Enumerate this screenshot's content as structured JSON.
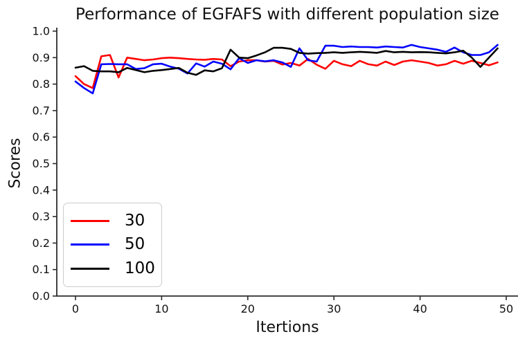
{
  "chart_data": {
    "type": "line",
    "title": "Performance of EGFAFS with different population size",
    "xlabel": "Itertions",
    "ylabel": "Scores",
    "xlim": [
      0,
      50
    ],
    "ylim": [
      0.0,
      1.0
    ],
    "grid": false,
    "legend_position": "lower left",
    "xticks": [
      0,
      10,
      20,
      30,
      40,
      50
    ],
    "xtick_labels": [
      "0",
      "10",
      "20",
      "30",
      "40",
      "50"
    ],
    "yticks": [
      0.0,
      0.1,
      0.2,
      0.3,
      0.4,
      0.5,
      0.6,
      0.7,
      0.8,
      0.9,
      1.0
    ],
    "ytick_labels": [
      "0.0",
      "0.1",
      "0.2",
      "0.3",
      "0.4",
      "0.5",
      "0.6",
      "0.7",
      "0.8",
      "0.9",
      "1.0"
    ],
    "x_start": 0,
    "x_step": 1,
    "series": [
      {
        "name": "30",
        "color": "#ff0000",
        "values": [
          0.83,
          0.8,
          0.785,
          0.905,
          0.91,
          0.825,
          0.9,
          0.895,
          0.89,
          0.893,
          0.898,
          0.9,
          0.898,
          0.895,
          0.893,
          0.892,
          0.895,
          0.893,
          0.868,
          0.885,
          0.89,
          0.89,
          0.885,
          0.888,
          0.874,
          0.88,
          0.87,
          0.895,
          0.873,
          0.858,
          0.888,
          0.875,
          0.868,
          0.888,
          0.875,
          0.87,
          0.885,
          0.872,
          0.885,
          0.89,
          0.885,
          0.88,
          0.87,
          0.875,
          0.888,
          0.877,
          0.888,
          0.88,
          0.871,
          0.882
        ]
      },
      {
        "name": "50",
        "color": "#0000ff",
        "values": [
          0.81,
          0.785,
          0.765,
          0.875,
          0.876,
          0.875,
          0.875,
          0.857,
          0.86,
          0.875,
          0.877,
          0.866,
          0.858,
          0.84,
          0.878,
          0.866,
          0.885,
          0.877,
          0.856,
          0.898,
          0.88,
          0.89,
          0.886,
          0.89,
          0.882,
          0.865,
          0.935,
          0.89,
          0.885,
          0.945,
          0.945,
          0.94,
          0.942,
          0.94,
          0.94,
          0.938,
          0.942,
          0.94,
          0.938,
          0.948,
          0.94,
          0.935,
          0.93,
          0.922,
          0.938,
          0.92,
          0.91,
          0.91,
          0.92,
          0.948
        ]
      },
      {
        "name": "100",
        "color": "#000000",
        "values": [
          0.862,
          0.868,
          0.85,
          0.848,
          0.848,
          0.845,
          0.861,
          0.853,
          0.845,
          0.85,
          0.853,
          0.857,
          0.861,
          0.843,
          0.835,
          0.852,
          0.848,
          0.86,
          0.93,
          0.9,
          0.898,
          0.908,
          0.92,
          0.937,
          0.937,
          0.933,
          0.918,
          0.915,
          0.917,
          0.918,
          0.92,
          0.918,
          0.92,
          0.922,
          0.92,
          0.918,
          0.925,
          0.92,
          0.922,
          0.92,
          0.921,
          0.92,
          0.918,
          0.916,
          0.92,
          0.926,
          0.9,
          0.865,
          0.9,
          0.935
        ]
      }
    ],
    "style": {
      "line_width": 2.6,
      "axis_color": "#2b2b2b",
      "tick_font_size": 16,
      "legend_border_color": "#cccccc"
    }
  }
}
